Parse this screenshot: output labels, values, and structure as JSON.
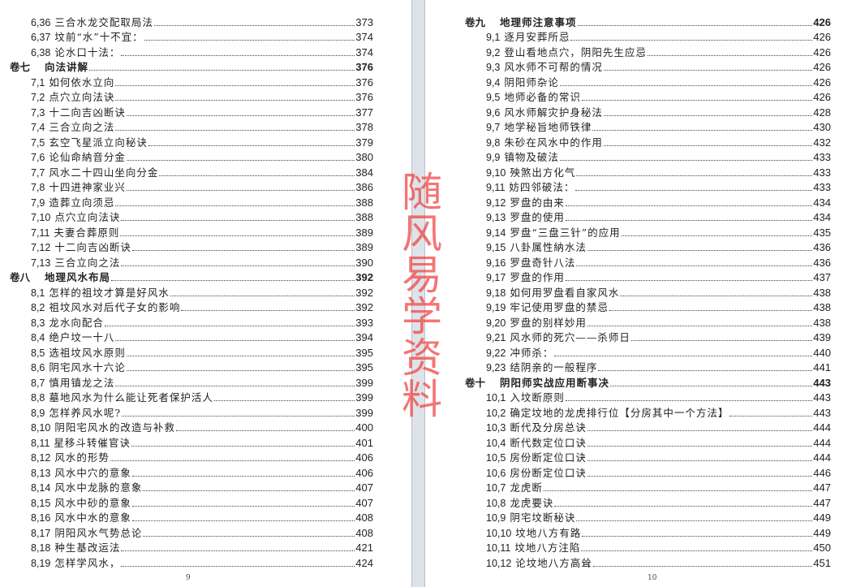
{
  "left_page": {
    "page_number": "9",
    "entries": [
      {
        "level": "sub",
        "num": "6,36",
        "title": "三合水龙交配取局法",
        "page": "373"
      },
      {
        "level": "sub",
        "num": "6,37",
        "title": "坟前“水”十不宜：",
        "page": "374"
      },
      {
        "level": "sub",
        "num": "6,38",
        "title": "论水口十法：",
        "page": "374"
      },
      {
        "level": "head",
        "num": "卷七",
        "title": "向法讲解",
        "page": "376"
      },
      {
        "level": "sub",
        "num": "7,1",
        "title": "如何依水立向",
        "page": "376"
      },
      {
        "level": "sub",
        "num": "7,2",
        "title": "点穴立向法诀",
        "page": "376"
      },
      {
        "level": "sub",
        "num": "7,3",
        "title": "十二向吉凶断诀",
        "page": "377"
      },
      {
        "level": "sub",
        "num": "7,4",
        "title": "三合立向之法",
        "page": "378"
      },
      {
        "level": "sub",
        "num": "7,5",
        "title": "玄空飞星派立向秘诀",
        "page": "379"
      },
      {
        "level": "sub",
        "num": "7,6",
        "title": "论仙命納音分金",
        "page": "380"
      },
      {
        "level": "sub",
        "num": "7,7",
        "title": "风水二十四山坐向分金",
        "page": "384"
      },
      {
        "level": "sub",
        "num": "7,8",
        "title": "十四进神家业兴",
        "page": "386"
      },
      {
        "level": "sub",
        "num": "7,9",
        "title": "造葬立向须忌",
        "page": "388"
      },
      {
        "level": "sub",
        "num": "7,10",
        "title": "点穴立向法诀",
        "page": "388"
      },
      {
        "level": "sub",
        "num": "7,11",
        "title": "夫妻合葬原则",
        "page": "389"
      },
      {
        "level": "sub",
        "num": "7,12",
        "title": "十二向吉凶断诀",
        "page": "389"
      },
      {
        "level": "sub",
        "num": "7,13",
        "title": "三合立向之法",
        "page": "390"
      },
      {
        "level": "head",
        "num": "卷八",
        "title": "地理风水布局",
        "page": "392"
      },
      {
        "level": "sub",
        "num": "8,1",
        "title": "怎样的祖坟才算是好风水",
        "page": "392"
      },
      {
        "level": "sub",
        "num": "8,2",
        "title": "祖坟风水对后代子女的影响",
        "page": "392"
      },
      {
        "level": "sub",
        "num": "8,3",
        "title": "龙水向配合",
        "page": "393"
      },
      {
        "level": "sub",
        "num": "8,4",
        "title": "绝户坟一十八",
        "page": "394"
      },
      {
        "level": "sub",
        "num": "8,5",
        "title": "选祖坟风水原则",
        "page": "395"
      },
      {
        "level": "sub",
        "num": "8,6",
        "title": "阴宅风水十六论",
        "page": "395"
      },
      {
        "level": "sub",
        "num": "8,7",
        "title": "慎用镇龙之法",
        "page": "399"
      },
      {
        "level": "sub",
        "num": "8,8",
        "title": "墓地风水为什么能让死者保护活人",
        "page": "399"
      },
      {
        "level": "sub",
        "num": "8,9",
        "title": "怎样养风水呢?",
        "page": "399"
      },
      {
        "level": "sub",
        "num": "8,10",
        "title": "阴阳宅风水的改造与补救",
        "page": "400"
      },
      {
        "level": "sub",
        "num": "8,11",
        "title": "星移斗转催官诀",
        "page": "401"
      },
      {
        "level": "sub",
        "num": "8,12",
        "title": "风水的形势",
        "page": "406"
      },
      {
        "level": "sub",
        "num": "8,13",
        "title": "风水中穴的意象",
        "page": "406"
      },
      {
        "level": "sub",
        "num": "8,14",
        "title": "风水中龙脉的意象",
        "page": "407"
      },
      {
        "level": "sub",
        "num": "8,15",
        "title": "风水中砂的意象",
        "page": "407"
      },
      {
        "level": "sub",
        "num": "8,16",
        "title": "风水中水的意象",
        "page": "408"
      },
      {
        "level": "sub",
        "num": "8,17",
        "title": "阴阳风水气势总论",
        "page": "408"
      },
      {
        "level": "sub",
        "num": "8,18",
        "title": "种生基改运法",
        "page": "421"
      },
      {
        "level": "sub",
        "num": "8,19",
        "title": "怎样学风水，",
        "page": "424"
      }
    ]
  },
  "right_page": {
    "page_number": "10",
    "entries": [
      {
        "level": "head",
        "num": "卷九",
        "title": "地理师注意事项",
        "page": "426"
      },
      {
        "level": "sub",
        "num": "9,1",
        "title": "逐月安葬所忌",
        "page": "426"
      },
      {
        "level": "sub",
        "num": "9,2",
        "title": "登山看地点穴，阴阳先生应忌",
        "page": "426"
      },
      {
        "level": "sub",
        "num": "9,3",
        "title": "风水师不可帮的情况",
        "page": "426"
      },
      {
        "level": "sub",
        "num": "9,4",
        "title": "阴阳师杂论",
        "page": "426"
      },
      {
        "level": "sub",
        "num": "9,5",
        "title": "地师必备的常识",
        "page": "426"
      },
      {
        "level": "sub",
        "num": "9,6",
        "title": "风水师解灾护身秘法",
        "page": "428"
      },
      {
        "level": "sub",
        "num": "9,7",
        "title": "地学秘旨地师铁律",
        "page": "430"
      },
      {
        "level": "sub",
        "num": "9,8",
        "title": "朱砂在风水中的作用",
        "page": "432"
      },
      {
        "level": "sub",
        "num": "9,9",
        "title": "镇物及破法",
        "page": "433"
      },
      {
        "level": "sub",
        "num": "9,10",
        "title": "殃煞出方化气",
        "page": "433"
      },
      {
        "level": "sub",
        "num": "9,11",
        "title": "妨四邻破法：",
        "page": "433"
      },
      {
        "level": "sub",
        "num": "9,12",
        "title": "罗盘的由来",
        "page": "434"
      },
      {
        "level": "sub",
        "num": "9,13",
        "title": "罗盘的使用",
        "page": "434"
      },
      {
        "level": "sub",
        "num": "9,14",
        "title": "罗盘“三盘三针”的应用",
        "page": "435"
      },
      {
        "level": "sub",
        "num": "9,15",
        "title": "八卦属性納水法",
        "page": "436"
      },
      {
        "level": "sub",
        "num": "9,16",
        "title": "罗盘奇针八法",
        "page": "436"
      },
      {
        "level": "sub",
        "num": "9,17",
        "title": "罗盘的作用",
        "page": "437"
      },
      {
        "level": "sub",
        "num": "9,18",
        "title": "如何用罗盘看自家风水",
        "page": "438"
      },
      {
        "level": "sub",
        "num": "9,19",
        "title": "牢记使用罗盘的禁忌",
        "page": "438"
      },
      {
        "level": "sub",
        "num": "9,20",
        "title": "罗盘的别样妙用",
        "page": "438"
      },
      {
        "level": "sub",
        "num": "9,21",
        "title": "风水师的死穴——杀师日",
        "page": "439"
      },
      {
        "level": "sub",
        "num": "9,22",
        "title": "冲师杀：",
        "page": "440"
      },
      {
        "level": "sub",
        "num": "9,23",
        "title": "结阴亲的一般程序",
        "page": "441"
      },
      {
        "level": "head",
        "num": "卷十",
        "title": "阴阳师实战应用断事决",
        "page": "443"
      },
      {
        "level": "sub",
        "num": "10,1",
        "title": "入坟断原则",
        "page": "443"
      },
      {
        "level": "sub",
        "num": "10,2",
        "title": "确定坟地的龙虎排行位【分房其中一个方法】",
        "page": "443"
      },
      {
        "level": "sub",
        "num": "10,3",
        "title": "断代及分房总诀",
        "page": "444"
      },
      {
        "level": "sub",
        "num": "10,4",
        "title": "断代数定位口诀",
        "page": "444"
      },
      {
        "level": "sub",
        "num": "10,5",
        "title": "房份断定位口诀",
        "page": "444"
      },
      {
        "level": "sub",
        "num": "10,6",
        "title": "房份断定位口诀",
        "page": "446"
      },
      {
        "level": "sub",
        "num": "10,7",
        "title": "龙虎断",
        "page": "447"
      },
      {
        "level": "sub",
        "num": "10,8",
        "title": "龙虎要诀",
        "page": "447"
      },
      {
        "level": "sub",
        "num": "10,9",
        "title": "阴宅坟断秘诀",
        "page": "449"
      },
      {
        "level": "sub",
        "num": "10,10",
        "title": "坟地八方有路",
        "page": "449"
      },
      {
        "level": "sub",
        "num": "10,11",
        "title": "坟地八方注陷",
        "page": "450"
      },
      {
        "level": "sub",
        "num": "10,12",
        "title": "论坟地八方高耸",
        "page": "451"
      }
    ]
  },
  "watermark": {
    "text": "随风易学资料",
    "color": "#f04646"
  }
}
